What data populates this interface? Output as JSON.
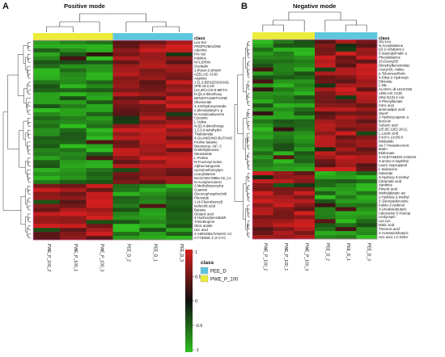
{
  "panels": {
    "a": {
      "letter": "A",
      "title": "Positive mode"
    },
    "b": {
      "letter": "B",
      "title": "Negative mode"
    }
  },
  "legend": {
    "title": "class",
    "items": [
      {
        "label": "PEE_D",
        "color": "#5ec7dd"
      },
      {
        "label": "PWE_P_100",
        "color": "#ecec3a"
      }
    ]
  },
  "colorbar": {
    "ticks": [
      "1",
      "0.5",
      "0",
      "-0.5",
      "-1"
    ],
    "colors": {
      "high": "#d41f1f",
      "mid": "#111111",
      "low": "#2fbf1f"
    }
  },
  "chart_data": [
    {
      "type": "heatmap",
      "title": "Positive mode",
      "annotation_label": "class",
      "columns": [
        "PWE_P_100_2",
        "PWE_P_100_1",
        "PWE_P_100_3",
        "PEE_D_2",
        "PEE_D_1",
        "PEE_D_3"
      ],
      "column_classes": [
        "PWE_P_100",
        "PWE_P_100",
        "PWE_P_100",
        "PEE_D",
        "PEE_D",
        "PEE_D"
      ],
      "rows": [
        "Leu-Ser",
        "PROPIOMAZINE",
        "Adenine",
        "Pro Val",
        "Indoline",
        "NYLIDRIN",
        "Oxeladin",
        "1-(furan-2-ylmeth",
        "AZELAIC ACID",
        "Arginine",
        "1-(1,3-BENZODIOXOL",
        "SPB 19:1;2O",
        "(1S,2R)-CIS-5-METH",
        "N-[(3,4-dimethoxy",
        "BENZOYLMETHANE",
        "Olivetonide",
        "3,4-Dihydroxymande",
        "c-phenylalanyl-L-p",
        "N-Acetylcadaverine",
        "Cytosine",
        "L-Valine",
        "N-[(3,4-dimethoxyp",
        "1,2,3,4-tetrahydro",
        "Thalidomide",
        "4-GUANIDINO-BUTANO",
        "Proline betaine",
        "Betonicine; AIF; C",
        "N-Methylleucine",
        "Stearamide",
        "L-Proline",
        "N-Fructosyl isoleu",
        "Alpha-mangostin",
        "cyclo(methionylpro",
        "Leucylalanine",
        "NCGC00178861-02_C1",
        "N-Acetylserotonin",
        "2-Methylbutyroylca",
        "Guanine",
        "Glycerophosphocholi",
        "Pteroside",
        "1-(4-Fluorobenzyl)",
        "isoferulic acid",
        "Betaine",
        "Glutaric acid",
        "4-Hydroxybenzaldeh",
        "Trimethoprim",
        "Oleic amide",
        "Uric acid",
        "4-AMINOBUTANOIC AC",
        "CYTIDINE 2',3'-CYC"
      ],
      "n_upper_block": 36,
      "note_values": "z-scored abundance, color range -1 to 1; upper block high in PEE_D / low in PWE_P_100, lower block reversed"
    },
    {
      "type": "heatmap",
      "title": "Negative mode",
      "annotation_label": "class",
      "columns": [
        "PWE_P_100_2",
        "PWE_P_100_1",
        "PWE_P_100_3",
        "PEE_D_2",
        "PEE_D_1",
        "PEE_D_3"
      ],
      "column_classes": [
        "PWE_P_100",
        "PWE_P_100",
        "PWE_P_100",
        "PEE_D",
        "PEE_D",
        "PEE_D"
      ],
      "rows": [
        "Gly-Leu",
        "N-Acetylalanine",
        "(2)-2-octylpent-2",
        "3-Isopropylmalic a",
        "Phenylalanine",
        "15-DeoxyDE",
        "Dimethylbenzimidaz",
        "Acetyl-DL-Valine",
        "p-Toluenesulfonic",
        "4-Ethyl-2-Hydroxyb",
        "Ethimide",
        "L-NIL",
        "ALANYL-dl-LEUCINE",
        "AZELAIC ACID",
        "(S5)-2(1S)-1-car",
        "3-Phenyllactate",
        "Citric acid",
        "aminoadipic acid",
        "SNAP",
        "2-Hydroxycaproic a",
        "benzoin",
        "Suberic acid",
        "(2E,6E,12E)-18-(2,",
        "L-Lactic acid",
        "FAHFA 13:0/6:0",
        "Bilobalide",
        "cis-7-Hexadecenoic",
        "Biotin",
        "Etidronate",
        "3-ACETAMIDO-2-DEOX",
        "3-amino-2-naphthoi",
        "Lauric isopropanol",
        "L-Isoleucine",
        "Suberate",
        "3-Hydroxy-3-methyl",
        "Citramalic acid",
        "Xanthine",
        "Pimelic acid",
        "Methylglutaric aci",
        "2-Hydroxy-2-methyl",
        "2'-Deoxyadenosine",
        "Indole-3-carbinol",
        "3-Ureidoisobutyric",
        "Adenosine 5'-monop",
        "cordycepin",
        "Lys-Lys",
        "Malic acid",
        "Threonic acid",
        "4-Acetamidobutyric",
        "Uric acid, LC-IDDA"
      ],
      "n_upper_block": 33,
      "note_values": "z-scored abundance, color range -1 to 1; upper block high in PEE_D / low in PWE_P_100, lower block reversed"
    }
  ]
}
